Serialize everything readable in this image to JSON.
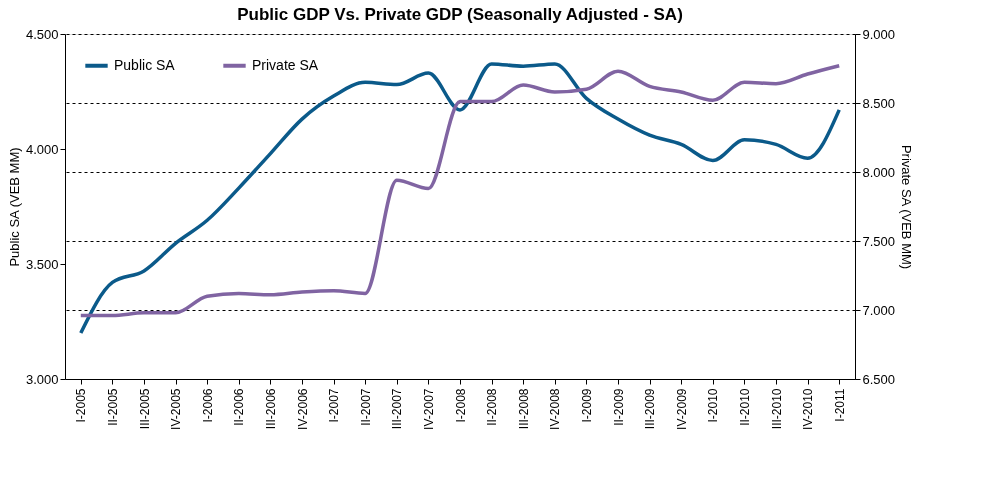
{
  "chart_data": {
    "type": "line",
    "title": "Public GDP Vs. Private GDP (Seasonally Adjusted - SA)",
    "ylabel": "Public SA (VEB MM)",
    "y2label": "Private SA (VEB MM)",
    "categories": [
      "I-2005",
      "II-2005",
      "III-2005",
      "IV-2005",
      "I-2006",
      "II-2006",
      "III-2006",
      "IV-2006",
      "I-2007",
      "II-2007",
      "III-2007",
      "IV-2007",
      "I-2008",
      "II-2008",
      "III-2008",
      "IV-2008",
      "I-2009",
      "II-2009",
      "III-2009",
      "IV-2009",
      "I-2010",
      "II-2010",
      "III-2010",
      "IV-2010",
      "I-2011"
    ],
    "series": [
      {
        "name": "Public SA",
        "color": "#0b5a8a",
        "axis": "y",
        "values": [
          3.2,
          3.42,
          3.47,
          3.59,
          3.69,
          3.83,
          3.98,
          4.13,
          4.23,
          4.29,
          4.28,
          4.33,
          4.17,
          4.37,
          4.36,
          4.37,
          4.22,
          4.13,
          4.06,
          4.02,
          3.95,
          4.04,
          4.02,
          3.96,
          4.17
        ]
      },
      {
        "name": "Private SA",
        "color": "#8064a2",
        "axis": "y2",
        "values": [
          6.96,
          6.96,
          6.98,
          6.98,
          7.1,
          7.12,
          7.11,
          7.13,
          7.14,
          7.12,
          7.94,
          7.88,
          8.51,
          8.51,
          8.63,
          8.58,
          8.6,
          8.73,
          8.62,
          8.58,
          8.52,
          8.65,
          8.64,
          8.71,
          8.77
        ]
      }
    ],
    "ylim": [
      3.0,
      4.5
    ],
    "yticks": [
      {
        "value": 3.0,
        "label": "3.000"
      },
      {
        "value": 3.5,
        "label": "3.500"
      },
      {
        "value": 4.0,
        "label": "4.000"
      },
      {
        "value": 4.5,
        "label": "4.500"
      }
    ],
    "y2lim": [
      6.5,
      9.0
    ],
    "y2ticks": [
      {
        "value": 6.5,
        "label": "6.500"
      },
      {
        "value": 7.0,
        "label": "7.000"
      },
      {
        "value": 7.5,
        "label": "7.500"
      },
      {
        "value": 8.0,
        "label": "8.000"
      },
      {
        "value": 8.5,
        "label": "8.500"
      },
      {
        "value": 9.0,
        "label": "9.000"
      }
    ],
    "grid": "y2",
    "legend": "top left",
    "marker": "none",
    "line_style": "solid"
  }
}
